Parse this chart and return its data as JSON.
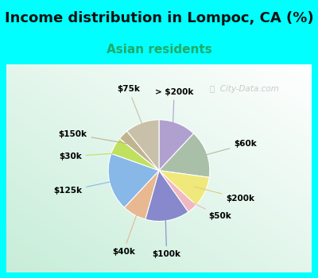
{
  "title": "Income distribution in Lompoc, CA (%)",
  "subtitle": "Asian residents",
  "subtitle_color": "#22aa66",
  "title_fontsize": 13,
  "subtitle_fontsize": 11,
  "bg_cyan": "#00ffff",
  "labels": [
    "> $200k",
    "$60k",
    "$200k",
    "$50k",
    "$100k",
    "$40k",
    "$125k",
    "$30k",
    "$150k",
    "$75k"
  ],
  "values": [
    11,
    14,
    9,
    3,
    13,
    7,
    17,
    5,
    3,
    10
  ],
  "colors": [
    "#b0a0d0",
    "#aabfa8",
    "#f0e87a",
    "#f0b8c0",
    "#8888cc",
    "#e8b890",
    "#88b8e8",
    "#c0e060",
    "#c0b490",
    "#c8c0a8"
  ],
  "line_colors": [
    "#b0a0d0",
    "#aabfa8",
    "#d8d080",
    "#f0b8c0",
    "#8888cc",
    "#e8b890",
    "#88b8e8",
    "#c0e060",
    "#c0b490",
    "#c8c0a8"
  ],
  "startangle": 90,
  "watermark": "City-Data.com"
}
